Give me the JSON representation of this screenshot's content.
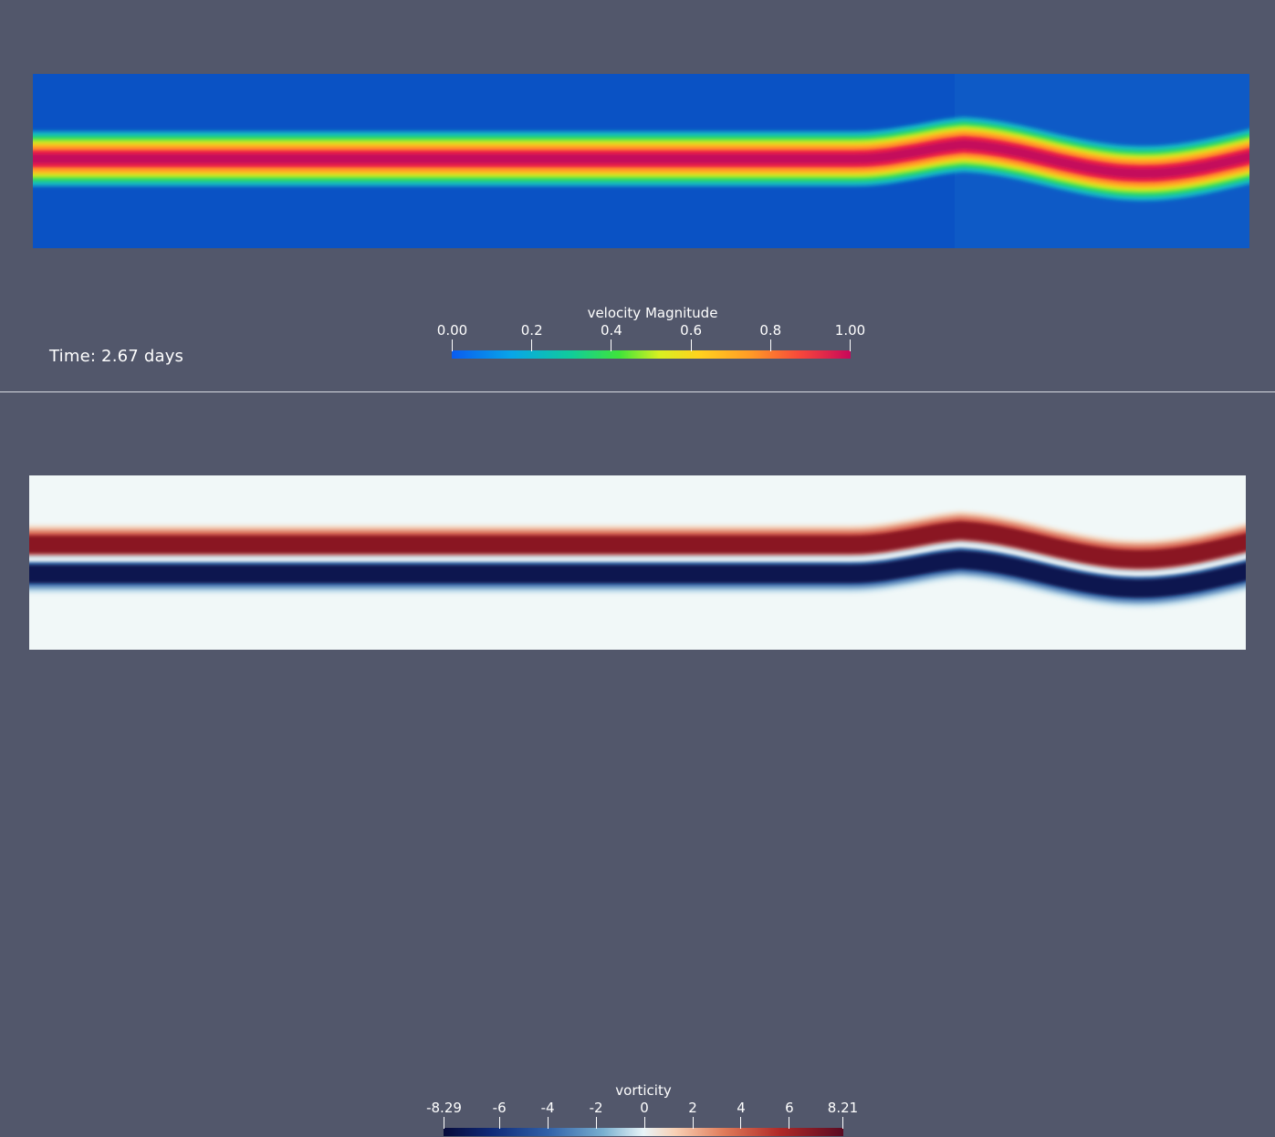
{
  "top_view": {
    "time_label": "Time: 2.67 days",
    "colorbar": {
      "title": "velocity Magnitude",
      "ticks": [
        "0.00",
        "0.2",
        "0.4",
        "0.6",
        "0.8",
        "1.00"
      ],
      "tick_values": [
        0.0,
        0.2,
        0.4,
        0.6,
        0.8,
        1.0
      ],
      "range": [
        0.0,
        1.0
      ]
    }
  },
  "bottom_view": {
    "colorbar": {
      "title": "vorticity",
      "ticks": [
        "-8.29",
        "-6",
        "-4",
        "-2",
        "0",
        "2",
        "4",
        "6",
        "8.21"
      ],
      "tick_values": [
        -8.29,
        -6,
        -4,
        -2,
        0,
        2,
        4,
        6,
        8.21
      ],
      "range": [
        -8.29,
        8.21
      ]
    }
  },
  "colors": {
    "background": "#52576b",
    "text": "#ffffff"
  }
}
